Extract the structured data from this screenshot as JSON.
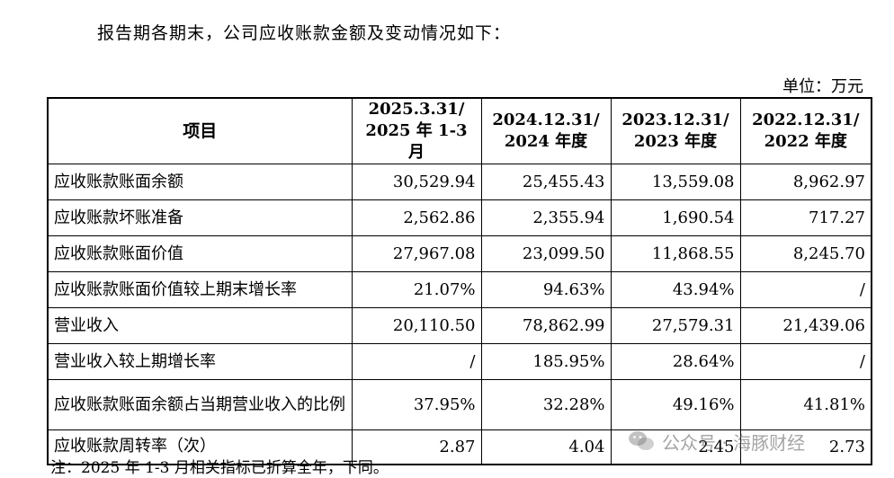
{
  "intro": "报告期各期末，公司应收账款金额及变动情况如下：",
  "unit": "单位：万元",
  "table": {
    "headers": {
      "item": "项目",
      "c1_line1": "2025.3.31/",
      "c1_line2": "2025 年 1-3 月",
      "c2_line1": "2024.12.31/",
      "c2_line2": "2024 年度",
      "c3_line1": "2023.12.31/",
      "c3_line2": "2023 年度",
      "c4_line1": "2022.12.31/",
      "c4_line2": "2022 年度"
    },
    "rows": [
      {
        "label": "应收账款账面余额",
        "v": [
          "30,529.94",
          "25,455.43",
          "13,559.08",
          "8,962.97"
        ]
      },
      {
        "label": "应收账款坏账准备",
        "v": [
          "2,562.86",
          "2,355.94",
          "1,690.54",
          "717.27"
        ]
      },
      {
        "label": "应收账款账面价值",
        "v": [
          "27,967.08",
          "23,099.50",
          "11,868.55",
          "8,245.70"
        ]
      },
      {
        "label": "应收账款账面价值较上期末增长率",
        "v": [
          "21.07%",
          "94.63%",
          "43.94%",
          "/"
        ]
      },
      {
        "label": "营业收入",
        "v": [
          "20,110.50",
          "78,862.99",
          "27,579.31",
          "21,439.06"
        ]
      },
      {
        "label": "营业收入较上期增长率",
        "v": [
          "/",
          "185.95%",
          "28.64%",
          "/"
        ]
      },
      {
        "label": "应收账款账面余额占当期营业收入的比例",
        "v": [
          "37.95%",
          "32.28%",
          "49.16%",
          "41.81%"
        ]
      },
      {
        "label": "应收账款周转率（次）",
        "v": [
          "2.87",
          "4.04",
          "2.45",
          "2.73"
        ]
      }
    ]
  },
  "note": "注：2025 年 1-3 月相关指标已折算全年，下同。",
  "watermark": {
    "text": "公众号 · 海豚财经",
    "icon": "wechat-icon"
  }
}
